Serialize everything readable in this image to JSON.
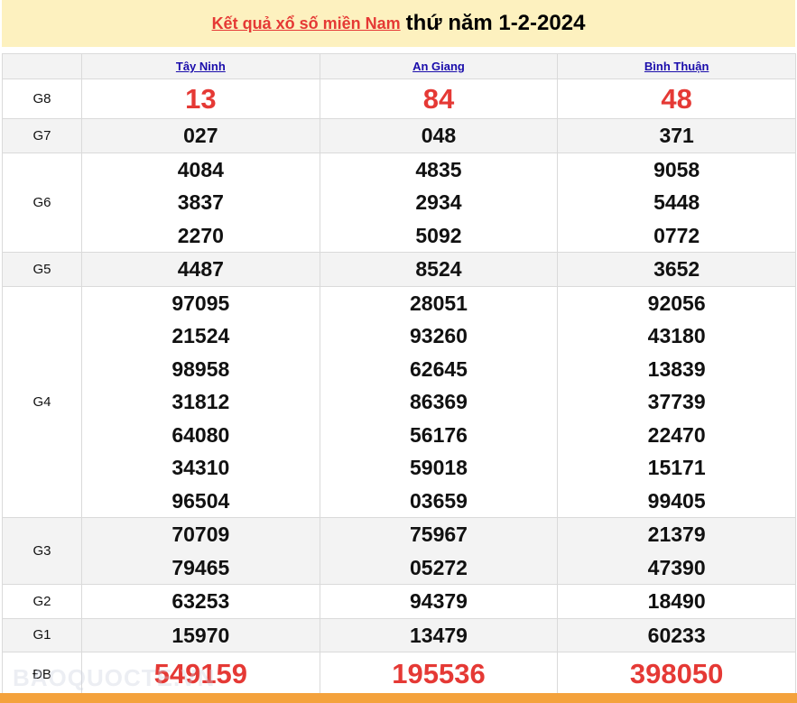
{
  "header": {
    "link_text": "Kết quả xổ số miền Nam",
    "date_text": "thứ năm 1-2-2024"
  },
  "provinces": [
    "Tây Ninh",
    "An Giang",
    "Bình Thuận"
  ],
  "prizes": [
    {
      "label": "G8",
      "values": [
        [
          "13"
        ],
        [
          "84"
        ],
        [
          "48"
        ]
      ]
    },
    {
      "label": "G7",
      "values": [
        [
          "027"
        ],
        [
          "048"
        ],
        [
          "371"
        ]
      ]
    },
    {
      "label": "G6",
      "values": [
        [
          "4084",
          "3837",
          "2270"
        ],
        [
          "4835",
          "2934",
          "5092"
        ],
        [
          "9058",
          "5448",
          "0772"
        ]
      ]
    },
    {
      "label": "G5",
      "values": [
        [
          "4487"
        ],
        [
          "8524"
        ],
        [
          "3652"
        ]
      ]
    },
    {
      "label": "G4",
      "values": [
        [
          "97095",
          "21524",
          "98958",
          "31812",
          "64080",
          "34310",
          "96504"
        ],
        [
          "28051",
          "93260",
          "62645",
          "86369",
          "56176",
          "59018",
          "03659"
        ],
        [
          "92056",
          "43180",
          "13839",
          "37739",
          "22470",
          "15171",
          "99405"
        ]
      ]
    },
    {
      "label": "G3",
      "values": [
        [
          "70709",
          "79465"
        ],
        [
          "75967",
          "05272"
        ],
        [
          "21379",
          "47390"
        ]
      ]
    },
    {
      "label": "G2",
      "values": [
        [
          "63253"
        ],
        [
          "94379"
        ],
        [
          "18490"
        ]
      ]
    },
    {
      "label": "G1",
      "values": [
        [
          "15970"
        ],
        [
          "13479"
        ],
        [
          "60233"
        ]
      ]
    },
    {
      "label": "ĐB",
      "values": [
        [
          "549159"
        ],
        [
          "195536"
        ],
        [
          "398050"
        ]
      ]
    }
  ],
  "watermark": "BAOQUOCTE.VN",
  "colors": {
    "accent_red": "#e53935",
    "title_bg": "#fdf1bf",
    "footer_bar": "#f4a23c",
    "link_blue": "#1a0dab"
  }
}
